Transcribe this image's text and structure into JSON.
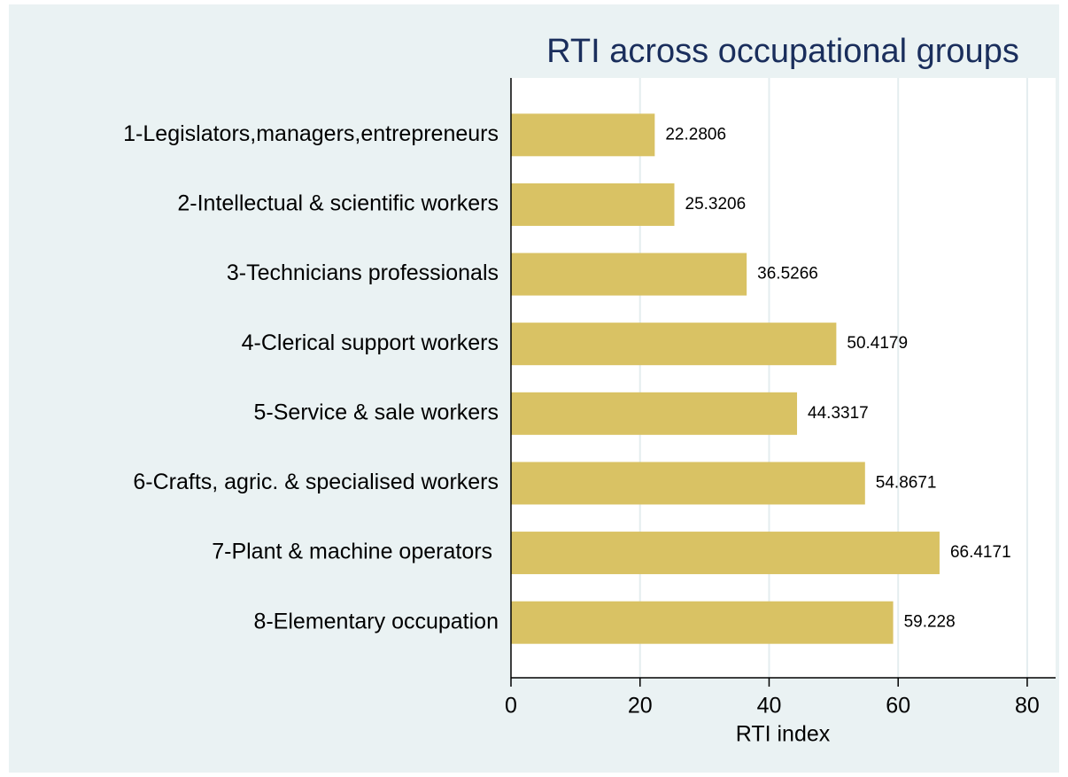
{
  "chart_data": {
    "type": "bar",
    "orientation": "horizontal",
    "title": "RTI across occupational groups",
    "x_label": "RTI index",
    "categories": [
      "1-Legislators,managers,entrepreneurs",
      "2-Intellectual & scientific workers",
      "3-Technicians professionals",
      "4-Clerical support workers",
      "5-Service & sale workers",
      "6-Crafts, agric. & specialised workers",
      "7-Plant & machine operators ",
      "8-Elementary occupation"
    ],
    "values": [
      22.2806,
      25.3206,
      36.5266,
      50.4179,
      44.3317,
      54.8671,
      66.4171,
      59.228
    ],
    "color": "#d9c264",
    "xlim": [
      0,
      84.4
    ],
    "xticks": [
      0,
      20,
      40,
      60,
      80
    ],
    "grid": true
  }
}
